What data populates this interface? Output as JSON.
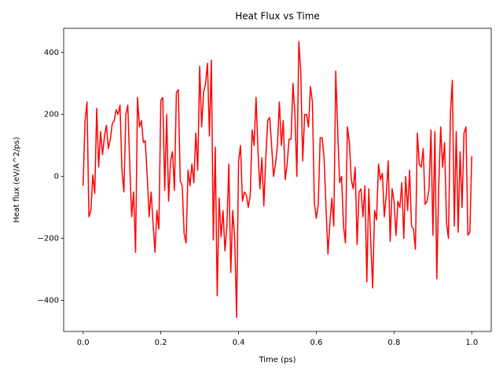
{
  "chart_data": {
    "type": "line",
    "title": "Heat Flux vs Time",
    "x_label": "Time (ps)",
    "y_label": "Heat flux (eV/A^2/ps)",
    "color": "#ff0000",
    "x": [
      0,
      0.005,
      0.01,
      0.015,
      0.02,
      0.025,
      0.03,
      0.035,
      0.04,
      0.045,
      0.05,
      0.055,
      0.06,
      0.065,
      0.07,
      0.075,
      0.08,
      0.085,
      0.09,
      0.095,
      0.1,
      0.105,
      0.11,
      0.115,
      0.12,
      0.125,
      0.13,
      0.135,
      0.14,
      0.145,
      0.15,
      0.155,
      0.16,
      0.165,
      0.17,
      0.175,
      0.18,
      0.185,
      0.19,
      0.195,
      0.2,
      0.205,
      0.21,
      0.215,
      0.22,
      0.225,
      0.23,
      0.235,
      0.24,
      0.245,
      0.25,
      0.255,
      0.26,
      0.265,
      0.27,
      0.275,
      0.28,
      0.285,
      0.29,
      0.295,
      0.3,
      0.305,
      0.31,
      0.315,
      0.32,
      0.325,
      0.33,
      0.335,
      0.34,
      0.345,
      0.35,
      0.355,
      0.36,
      0.365,
      0.37,
      0.375,
      0.38,
      0.385,
      0.39,
      0.395,
      0.4,
      0.405,
      0.41,
      0.415,
      0.42,
      0.425,
      0.43,
      0.435,
      0.44,
      0.445,
      0.45,
      0.455,
      0.46,
      0.465,
      0.47,
      0.475,
      0.48,
      0.485,
      0.49,
      0.495,
      0.5,
      0.505,
      0.51,
      0.515,
      0.52,
      0.525,
      0.53,
      0.535,
      0.54,
      0.545,
      0.55,
      0.555,
      0.56,
      0.565,
      0.57,
      0.575,
      0.58,
      0.585,
      0.59,
      0.595,
      0.6,
      0.605,
      0.61,
      0.615,
      0.62,
      0.625,
      0.63,
      0.635,
      0.64,
      0.645,
      0.65,
      0.655,
      0.66,
      0.665,
      0.67,
      0.675,
      0.68,
      0.685,
      0.69,
      0.695,
      0.7,
      0.705,
      0.71,
      0.715,
      0.72,
      0.725,
      0.73,
      0.735,
      0.74,
      0.745,
      0.75,
      0.755,
      0.76,
      0.765,
      0.77,
      0.775,
      0.78,
      0.785,
      0.79,
      0.795,
      0.8,
      0.805,
      0.81,
      0.815,
      0.82,
      0.825,
      0.83,
      0.835,
      0.84,
      0.845,
      0.85,
      0.855,
      0.86,
      0.865,
      0.87,
      0.875,
      0.88,
      0.885,
      0.89,
      0.895,
      0.9,
      0.905,
      0.91,
      0.915,
      0.92,
      0.925,
      0.93,
      0.935,
      0.94,
      0.945,
      0.95,
      0.955,
      0.96,
      0.965,
      0.97,
      0.975,
      0.98,
      0.985,
      0.99,
      0.995,
      1.0
    ],
    "values": [
      -30,
      180,
      240,
      -130,
      -110,
      5,
      -55,
      220,
      30,
      145,
      70,
      130,
      165,
      90,
      120,
      170,
      180,
      215,
      200,
      230,
      20,
      -50,
      200,
      230,
      40,
      -130,
      -50,
      -245,
      255,
      160,
      180,
      110,
      115,
      0,
      -130,
      -50,
      -150,
      -245,
      -110,
      -170,
      245,
      255,
      -45,
      200,
      -80,
      50,
      80,
      -45,
      270,
      280,
      -15,
      -30,
      -185,
      -215,
      20,
      -30,
      40,
      -20,
      140,
      20,
      355,
      160,
      270,
      300,
      365,
      130,
      375,
      -205,
      95,
      -385,
      -70,
      -195,
      -110,
      -240,
      -160,
      40,
      -310,
      -110,
      -200,
      -455,
      50,
      100,
      -80,
      -50,
      -60,
      -100,
      -60,
      150,
      100,
      255,
      80,
      -40,
      60,
      -95,
      60,
      180,
      190,
      100,
      0,
      40,
      100,
      240,
      100,
      180,
      -10,
      40,
      120,
      120,
      300,
      200,
      0,
      435,
      340,
      50,
      200,
      200,
      160,
      290,
      240,
      -85,
      -135,
      -90,
      125,
      125,
      60,
      -100,
      -250,
      -150,
      -70,
      -160,
      340,
      150,
      -20,
      0,
      -160,
      -215,
      160,
      110,
      -10,
      -40,
      30,
      -220,
      -50,
      -40,
      -130,
      -30,
      -340,
      -40,
      -210,
      -360,
      -110,
      -140,
      40,
      -10,
      10,
      -130,
      -60,
      50,
      -210,
      -40,
      -80,
      -190,
      -80,
      -100,
      -20,
      -200,
      0,
      -110,
      20,
      -160,
      -170,
      -235,
      140,
      40,
      30,
      90,
      -90,
      -80,
      -40,
      150,
      -190,
      145,
      -330,
      -30,
      160,
      30,
      110,
      -150,
      -200,
      200,
      310,
      -160,
      145,
      -180,
      80,
      -100,
      140,
      160,
      -190,
      -180,
      65
    ],
    "xlim": [
      -0.05,
      1.05
    ],
    "ylim": [
      -500,
      478
    ],
    "xticks": [
      {
        "value": 0,
        "label": "0.0"
      },
      {
        "value": 0.2,
        "label": "0.2"
      },
      {
        "value": 0.4,
        "label": "0.4"
      },
      {
        "value": 0.6,
        "label": "0.6"
      },
      {
        "value": 0.8,
        "label": "0.8"
      },
      {
        "value": 1.0,
        "label": "1.0"
      }
    ],
    "yticks": [
      {
        "value": -400,
        "label": "−400"
      },
      {
        "value": -200,
        "label": "−200"
      },
      0,
      200,
      400
    ],
    "grid": false
  }
}
